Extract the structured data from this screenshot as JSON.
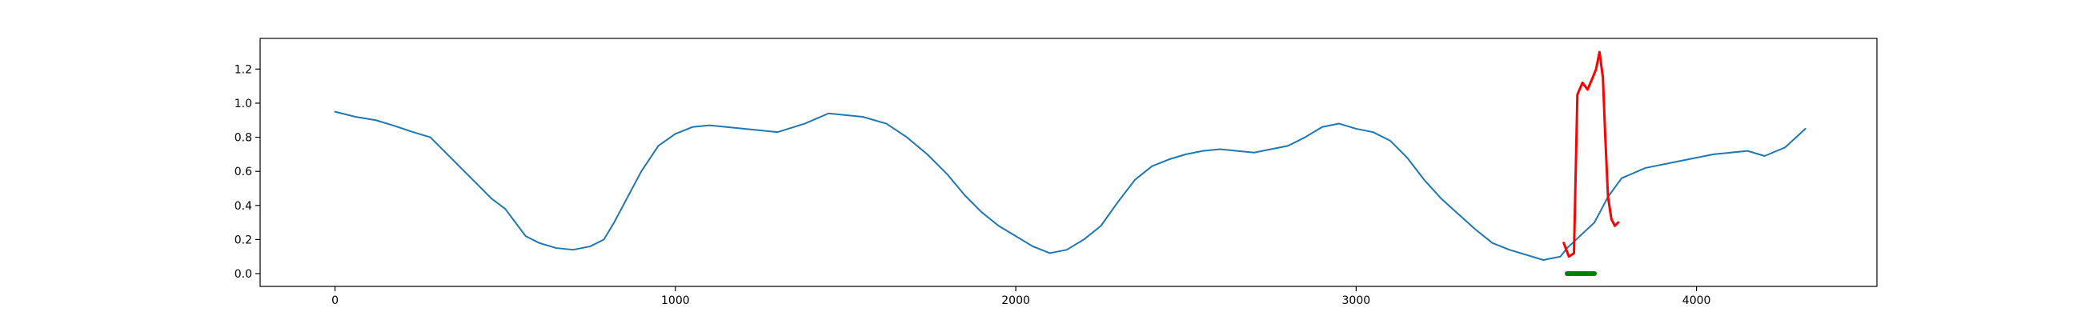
{
  "chart_data": {
    "type": "line",
    "title": "",
    "xlabel": "",
    "ylabel": "",
    "xlim": [
      -220,
      4530
    ],
    "ylim": [
      -0.075,
      1.38
    ],
    "x_ticks": [
      0,
      1000,
      2000,
      3000,
      4000
    ],
    "y_ticks": [
      0.0,
      0.2,
      0.4,
      0.6,
      0.8,
      1.0,
      1.2
    ],
    "x_tick_labels": [
      "0",
      "1000",
      "2000",
      "3000",
      "4000"
    ],
    "y_tick_labels": [
      "0.0",
      "0.2",
      "0.4",
      "0.6",
      "0.8",
      "1.0",
      "1.2"
    ],
    "grid": false,
    "legend": "none",
    "series": [
      {
        "color": "#1f77b4",
        "points": [
          [
            0,
            0.95
          ],
          [
            60,
            0.92
          ],
          [
            120,
            0.9
          ],
          [
            170,
            0.87
          ],
          [
            230,
            0.83
          ],
          [
            280,
            0.8
          ],
          [
            300,
            0.76
          ],
          [
            340,
            0.68
          ],
          [
            380,
            0.6
          ],
          [
            420,
            0.52
          ],
          [
            460,
            0.44
          ],
          [
            500,
            0.38
          ],
          [
            530,
            0.3
          ],
          [
            560,
            0.22
          ],
          [
            600,
            0.18
          ],
          [
            650,
            0.15
          ],
          [
            700,
            0.14
          ],
          [
            750,
            0.16
          ],
          [
            790,
            0.2
          ],
          [
            820,
            0.3
          ],
          [
            860,
            0.45
          ],
          [
            900,
            0.6
          ],
          [
            950,
            0.75
          ],
          [
            1000,
            0.82
          ],
          [
            1050,
            0.86
          ],
          [
            1100,
            0.87
          ],
          [
            1200,
            0.85
          ],
          [
            1300,
            0.83
          ],
          [
            1380,
            0.88
          ],
          [
            1450,
            0.94
          ],
          [
            1500,
            0.93
          ],
          [
            1550,
            0.92
          ],
          [
            1620,
            0.88
          ],
          [
            1680,
            0.8
          ],
          [
            1740,
            0.7
          ],
          [
            1800,
            0.58
          ],
          [
            1850,
            0.46
          ],
          [
            1900,
            0.36
          ],
          [
            1950,
            0.28
          ],
          [
            2000,
            0.22
          ],
          [
            2050,
            0.16
          ],
          [
            2100,
            0.12
          ],
          [
            2150,
            0.14
          ],
          [
            2200,
            0.2
          ],
          [
            2250,
            0.28
          ],
          [
            2300,
            0.42
          ],
          [
            2350,
            0.55
          ],
          [
            2400,
            0.63
          ],
          [
            2450,
            0.67
          ],
          [
            2500,
            0.7
          ],
          [
            2550,
            0.72
          ],
          [
            2600,
            0.73
          ],
          [
            2700,
            0.71
          ],
          [
            2800,
            0.75
          ],
          [
            2850,
            0.8
          ],
          [
            2900,
            0.86
          ],
          [
            2950,
            0.88
          ],
          [
            3000,
            0.85
          ],
          [
            3050,
            0.83
          ],
          [
            3100,
            0.78
          ],
          [
            3150,
            0.68
          ],
          [
            3200,
            0.55
          ],
          [
            3250,
            0.44
          ],
          [
            3300,
            0.35
          ],
          [
            3350,
            0.26
          ],
          [
            3400,
            0.18
          ],
          [
            3450,
            0.14
          ],
          [
            3500,
            0.11
          ],
          [
            3550,
            0.08
          ],
          [
            3600,
            0.1
          ],
          [
            3620,
            0.15
          ],
          [
            3700,
            0.3
          ],
          [
            3740,
            0.45
          ],
          [
            3780,
            0.56
          ],
          [
            3850,
            0.62
          ],
          [
            3950,
            0.66
          ],
          [
            4050,
            0.7
          ],
          [
            4150,
            0.72
          ],
          [
            4200,
            0.69
          ],
          [
            4260,
            0.74
          ],
          [
            4320,
            0.85
          ]
        ]
      },
      {
        "color": "#ff0000",
        "points": [
          [
            3610,
            0.18
          ],
          [
            3625,
            0.1
          ],
          [
            3640,
            0.12
          ],
          [
            3650,
            1.05
          ],
          [
            3665,
            1.12
          ],
          [
            3680,
            1.08
          ],
          [
            3695,
            1.15
          ],
          [
            3705,
            1.2
          ],
          [
            3715,
            1.3
          ],
          [
            3725,
            1.15
          ],
          [
            3732,
            0.8
          ],
          [
            3740,
            0.45
          ],
          [
            3750,
            0.32
          ],
          [
            3760,
            0.28
          ],
          [
            3770,
            0.3
          ]
        ]
      },
      {
        "color": "#008000",
        "points": [
          [
            3620,
            0.0
          ],
          [
            3700,
            0.0
          ]
        ]
      }
    ]
  }
}
